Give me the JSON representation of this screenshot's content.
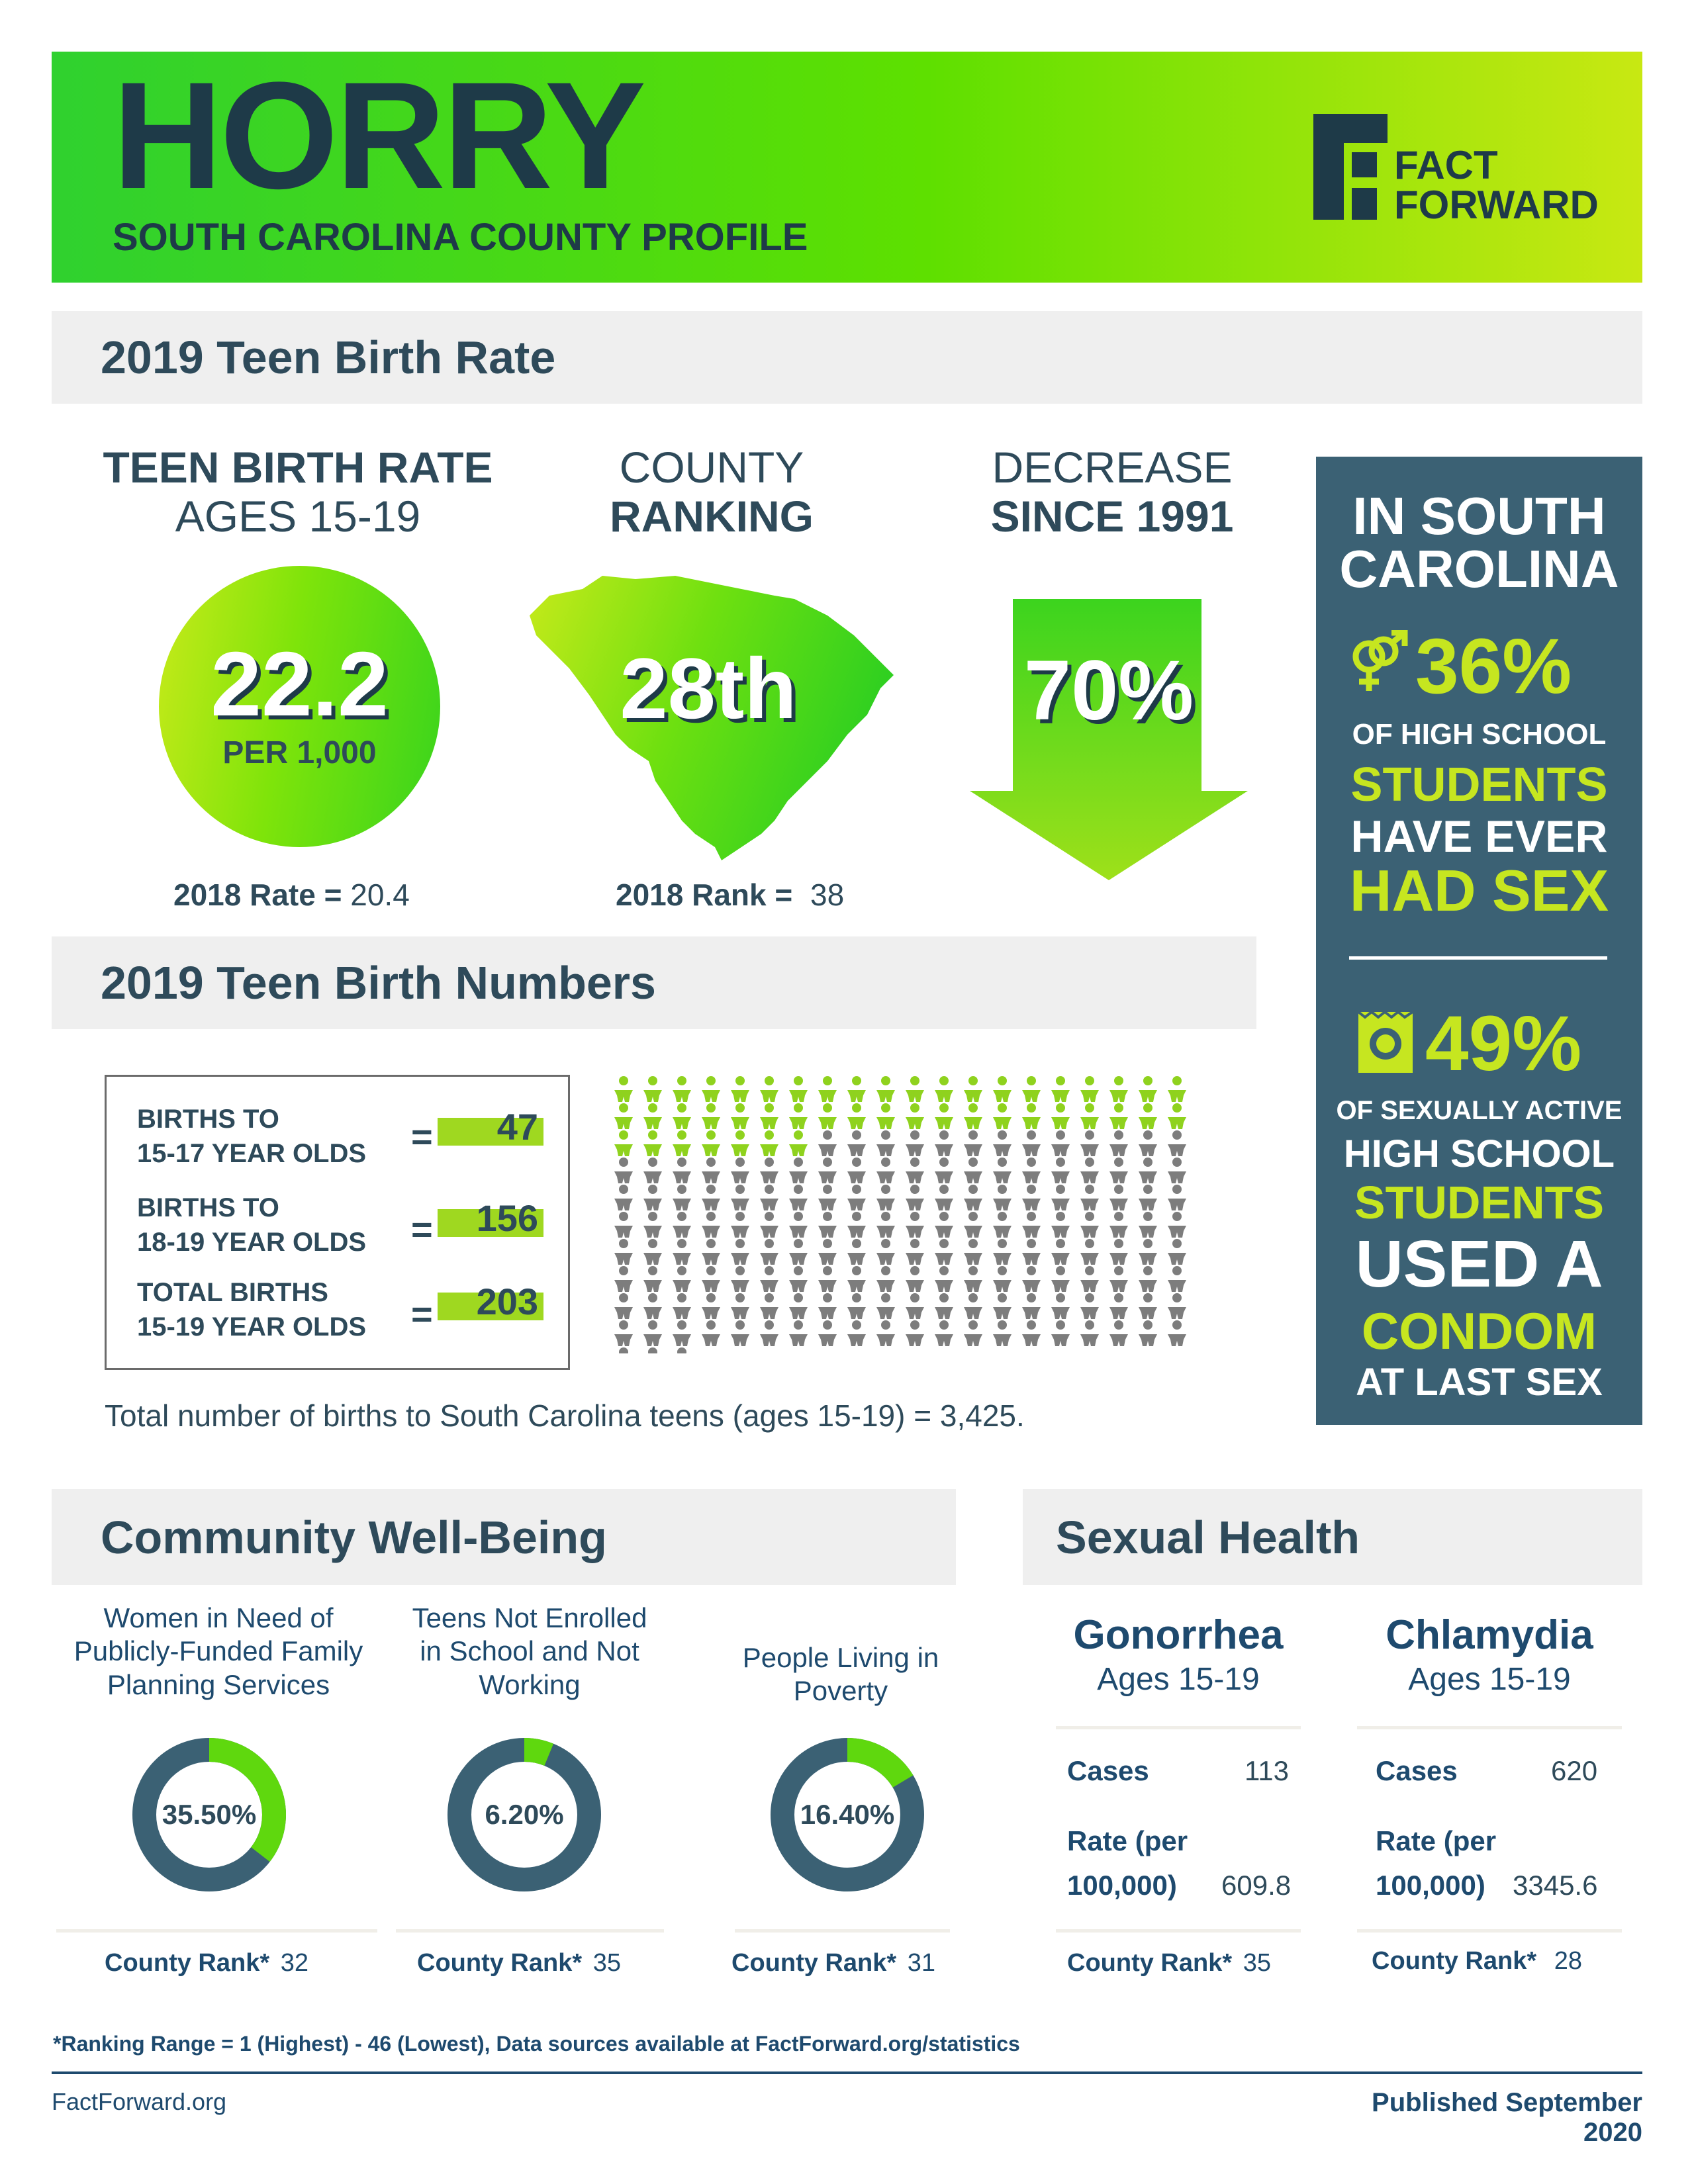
{
  "header": {
    "county": "HORRY",
    "subtitle": "SOUTH CAROLINA COUNTY PROFILE",
    "logo_line1": "FACT",
    "logo_line2": "FORWARD"
  },
  "teen_birth_rate": {
    "section_title": "2019 Teen Birth Rate",
    "rate": {
      "title_line1": "TEEN BIRTH RATE",
      "title_line2": "AGES 15-19",
      "value": "22.2",
      "unit": "PER 1,000",
      "prev_label": "2018 Rate =",
      "prev_value": "20.4"
    },
    "ranking": {
      "title_line1": "COUNTY",
      "title_line2": "RANKING",
      "value": "28th",
      "prev_label": "2018 Rank =",
      "prev_value": "38"
    },
    "decrease": {
      "title_line1": "DECREASE",
      "title_line2": "SINCE 1991",
      "value": "70%"
    }
  },
  "sidebar": {
    "heading_line1": "IN SOUTH",
    "heading_line2": "CAROLINA",
    "stat1": {
      "value": "36%",
      "line1": "OF HIGH SCHOOL",
      "line2": "STUDENTS",
      "line3": "HAVE EVER",
      "line4": "HAD SEX"
    },
    "stat2": {
      "value": "49%",
      "line1": "OF SEXUALLY ACTIVE",
      "line2": "HIGH SCHOOL",
      "line3": "STUDENTS",
      "line4": "USED A",
      "line5": "CONDOM",
      "line6": "AT LAST SEX"
    }
  },
  "teen_birth_numbers": {
    "section_title": "2019 Teen Birth Numbers",
    "rows": [
      {
        "label_line1": "BIRTHS TO",
        "label_line2": "15-17 YEAR OLDS",
        "eq": "=",
        "value": "47"
      },
      {
        "label_line1": "BIRTHS TO",
        "label_line2": "18-19 YEAR OLDS",
        "eq": "=",
        "value": "156"
      },
      {
        "label_line1": "TOTAL BIRTHS",
        "label_line2": "15-19 YEAR OLDS",
        "eq": "=",
        "value": "203"
      }
    ],
    "pictogram": {
      "green_count": 47,
      "gray_count": 156,
      "total": 203,
      "colors": {
        "green": "#8fd21e",
        "gray": "#7d7d7d"
      }
    },
    "footnote": "Total number of births to South Carolina teens (ages 15-19) = 3,425."
  },
  "community": {
    "section_title": "Community Well-Being",
    "items": [
      {
        "title_line1": "Women in Need of",
        "title_line2": "Publicly-Funded Family",
        "title_line3": "Planning Services",
        "percent_label": "35.50%",
        "percent": 35.5,
        "rank_label": "County Rank*",
        "rank": "32"
      },
      {
        "title_line1": "Teens Not Enrolled",
        "title_line2": "in School and Not",
        "title_line3": "Working",
        "percent_label": "6.20%",
        "percent": 6.2,
        "rank_label": "County Rank*",
        "rank": "35"
      },
      {
        "title_line1": "People Living in",
        "title_line2": "Poverty",
        "title_line3": "",
        "percent_label": "16.40%",
        "percent": 16.4,
        "rank_label": "County Rank*",
        "rank": "31"
      }
    ]
  },
  "sexual_health": {
    "section_title": "Sexual Health",
    "diseases": [
      {
        "name": "Gonorrhea",
        "ages": "Ages 15-19",
        "cases_label": "Cases",
        "cases": "113",
        "rate_label_line1": "Rate (per",
        "rate_label_line2": "100,000)",
        "rate": "609.8",
        "rank_label": "County Rank*",
        "rank": "35"
      },
      {
        "name": "Chlamydia",
        "ages": "Ages 15-19",
        "cases_label": "Cases",
        "cases": "620",
        "rate_label_line1": "Rate (per",
        "rate_label_line2": "100,000)",
        "rate": "3345.6",
        "rank_label": "County Rank*",
        "rank": "28"
      }
    ]
  },
  "footer": {
    "note": "*Ranking Range = 1 (Highest) - 46 (Lowest), Data sources available at FactForward.org/statistics",
    "site": "FactForward.org",
    "published": "Published September 2020"
  },
  "colors": {
    "navy": "#1e3a48",
    "slate": "#3b6174",
    "lime": "#c6e620",
    "green": "#5ee000"
  }
}
